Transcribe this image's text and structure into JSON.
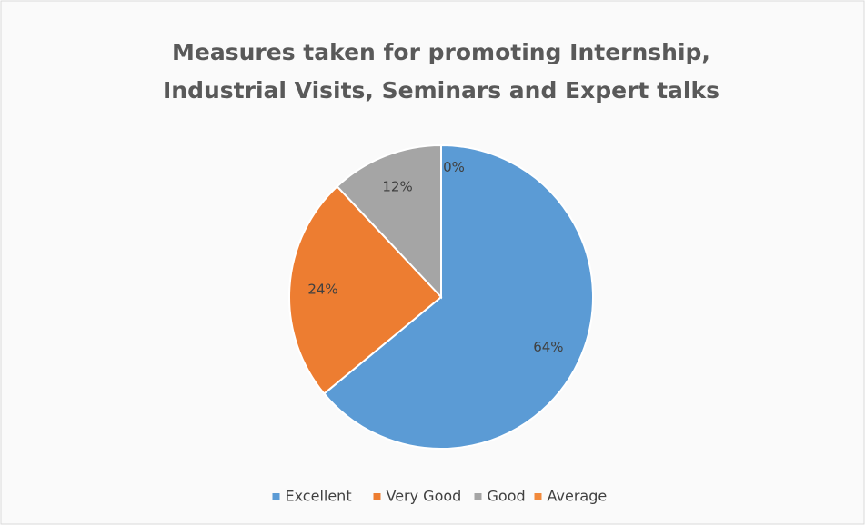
{
  "chart_data": {
    "type": "pie",
    "title": [
      "Measures taken for promoting Internship,",
      "Industrial Visits, Seminars and Expert talks"
    ],
    "categories": [
      "Excellent",
      "Very Good",
      "Good",
      "Average"
    ],
    "values": [
      64,
      24,
      12,
      0
    ],
    "value_labels": [
      "64%",
      "24%",
      "12%",
      "0%"
    ],
    "colors": [
      "#5b9bd5",
      "#ed7d31",
      "#a5a5a5",
      "#f28a3c"
    ],
    "legend": "bottom"
  }
}
